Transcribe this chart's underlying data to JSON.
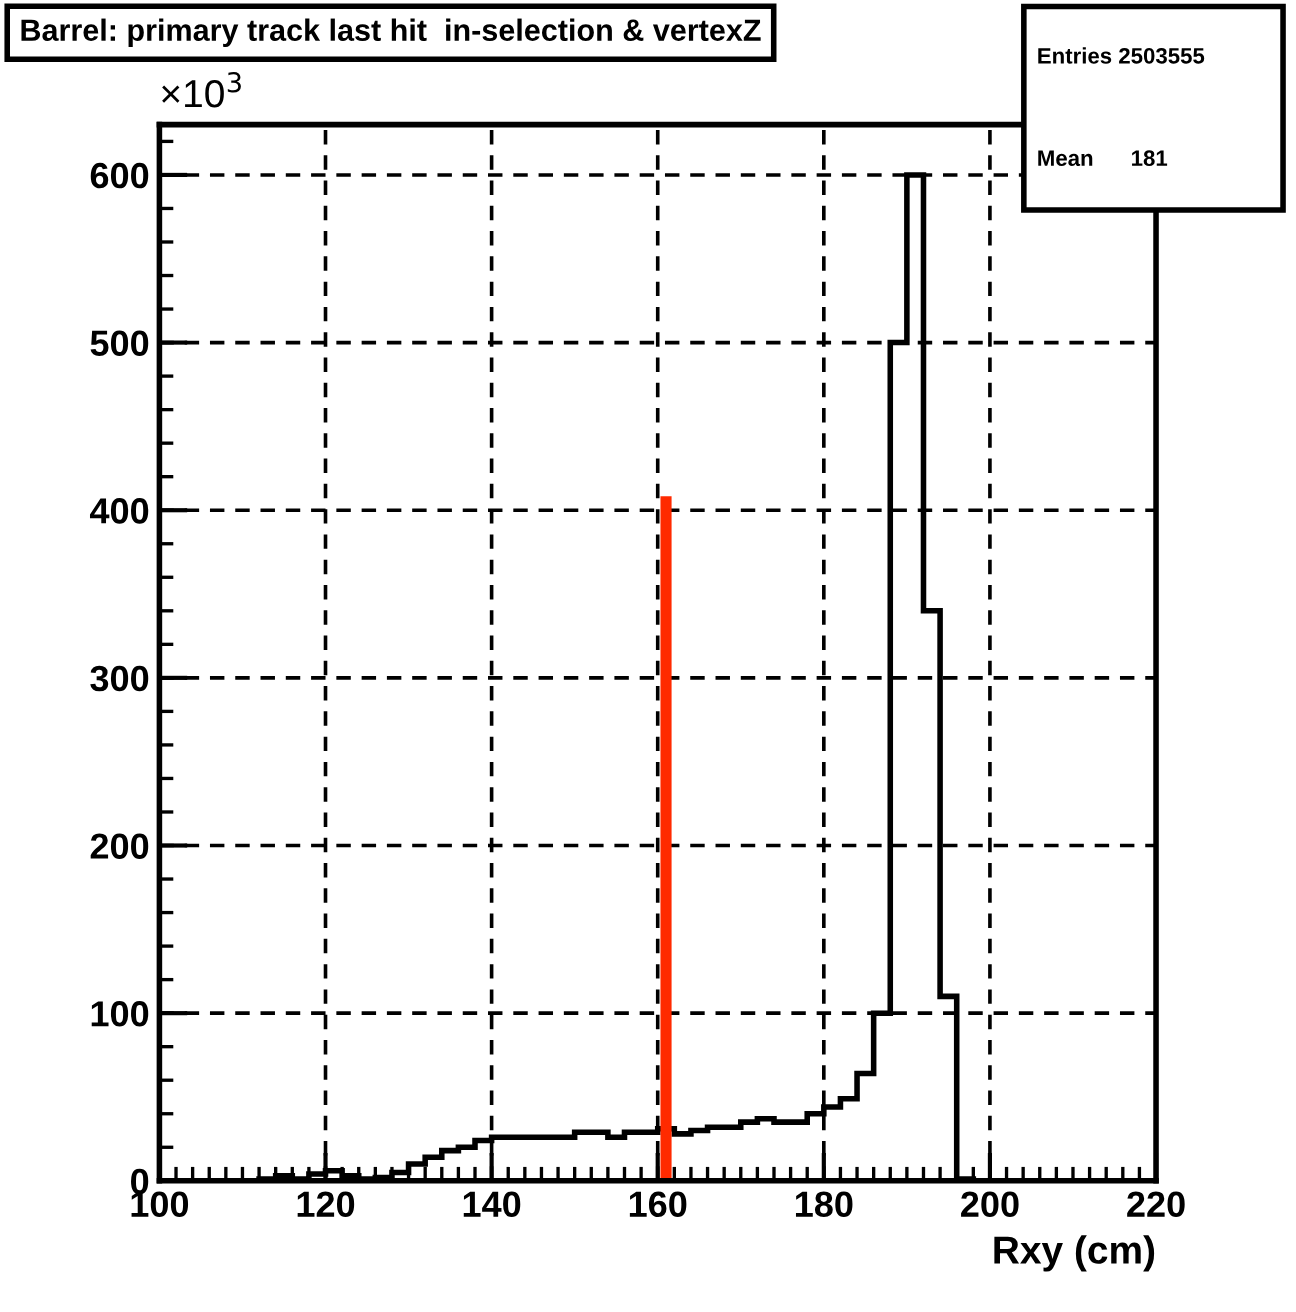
{
  "chart_data": {
    "type": "histogram",
    "title": "Barrel: primary track last hit  in-selection & vertexZ",
    "xlabel": "Rxy (cm)",
    "annotations": [
      "×10$^{3}$",
      "Entries 2503555",
      "Mean      181"
    ],
    "bins": [
      100,
      102,
      104,
      106,
      108,
      110,
      112,
      114,
      116,
      118,
      120,
      122,
      124,
      126,
      128,
      130,
      132,
      134,
      136,
      138,
      140,
      142,
      144,
      146,
      148,
      150,
      152,
      154,
      156,
      158,
      160,
      162,
      164,
      166,
      168,
      170,
      172,
      174,
      176,
      178,
      180,
      182,
      184,
      186,
      188,
      190,
      192,
      194,
      196,
      198,
      200,
      202,
      204,
      206,
      208,
      210,
      212,
      214,
      216,
      218,
      220
    ],
    "series": [
      {
        "color": "#000000",
        "values": [
          0,
          0,
          0,
          0,
          0,
          0,
          1,
          3,
          1,
          4,
          6,
          3,
          1,
          2,
          5,
          10,
          14,
          18,
          20,
          24,
          26,
          26,
          26,
          26,
          26,
          29,
          29,
          26,
          29,
          29,
          31,
          28,
          30,
          32,
          32,
          35,
          37,
          35,
          35,
          40,
          44,
          49,
          64,
          100,
          500,
          600,
          340,
          110,
          1,
          0,
          0,
          0,
          0,
          0,
          0,
          0,
          0,
          0,
          0,
          0
        ]
      },
      {
        "type": "line",
        "color": "#ff2a00",
        "x": [
          161,
          161
        ],
        "values": [
          0,
          405
        ]
      }
    ],
    "xlim": [
      100,
      220
    ],
    "ylim": [
      0,
      630
    ],
    "xticks": [
      100,
      120,
      140,
      160,
      180,
      200,
      220
    ],
    "yticks": [
      0,
      100,
      200,
      300,
      400,
      500,
      600
    ],
    "grid": true
  }
}
